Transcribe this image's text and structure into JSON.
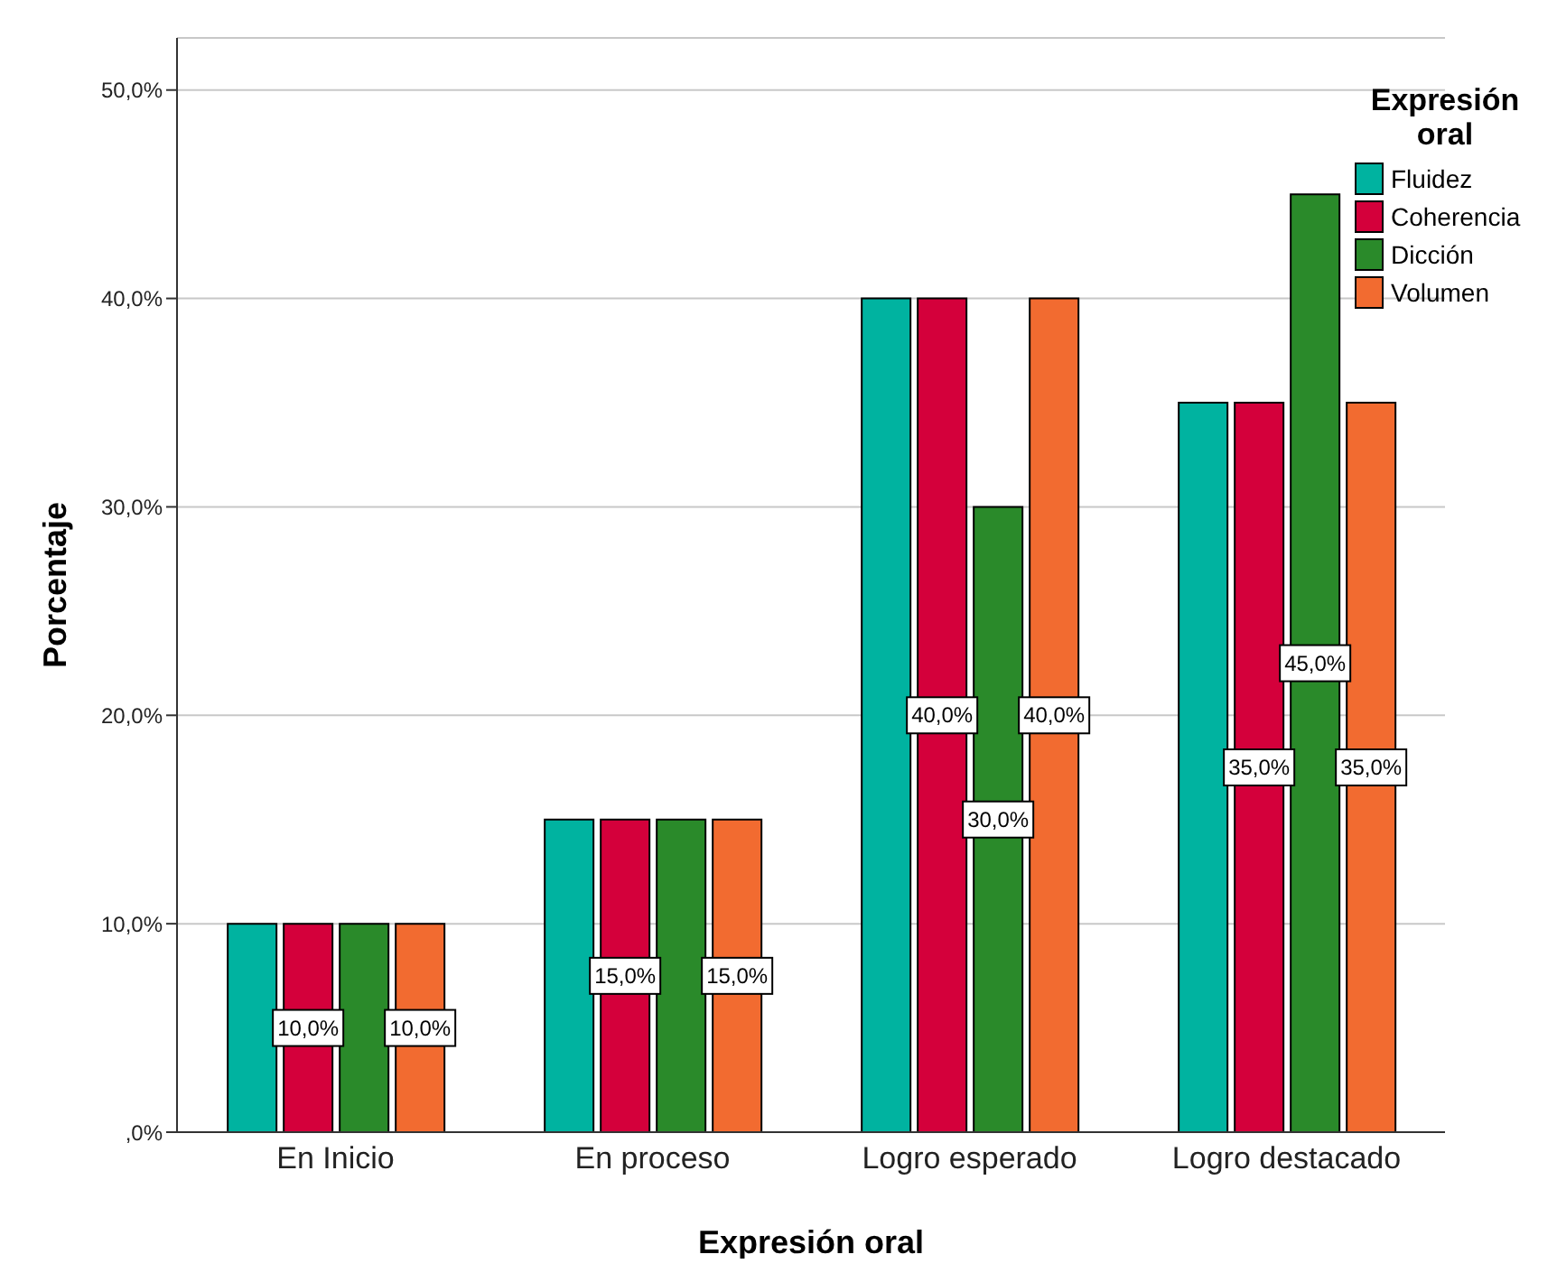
{
  "chart_data": {
    "type": "bar",
    "xlabel": "Expresión oral",
    "ylabel": "Porcentaje",
    "legend_title": "Expresión oral",
    "legend": "top right",
    "grid": "y",
    "categories": [
      "En Inicio",
      "En proceso",
      "Logro esperado",
      "Logro destacado"
    ],
    "ylim": [
      0,
      52.5
    ],
    "yticks": [
      {
        "value": 0,
        "label": ",0%"
      },
      {
        "value": 10,
        "label": "10,0%"
      },
      {
        "value": 20,
        "label": "20,0%"
      },
      {
        "value": 30,
        "label": "30,0%"
      },
      {
        "value": 40,
        "label": "40,0%"
      },
      {
        "value": 50,
        "label": "50,0%"
      }
    ],
    "series": [
      {
        "name": "Fluidez",
        "color": "#00b3a0",
        "values": [
          10,
          15,
          40,
          35
        ]
      },
      {
        "name": "Coherencia",
        "color": "#d4003b",
        "values": [
          10,
          15,
          40,
          35
        ],
        "value_labels": [
          "10,0%",
          "15,0%",
          "40,0%",
          "35,0%"
        ]
      },
      {
        "name": "Dicción",
        "color": "#2a8a2a",
        "values": [
          10,
          15,
          30,
          45
        ],
        "value_labels": [
          null,
          null,
          "30,0%",
          "45,0%"
        ]
      },
      {
        "name": "Volumen",
        "color": "#f26b30",
        "values": [
          10,
          15,
          40,
          35
        ],
        "value_labels": [
          "10,0%",
          "15,0%",
          "40,0%",
          "35,0%"
        ]
      }
    ]
  }
}
